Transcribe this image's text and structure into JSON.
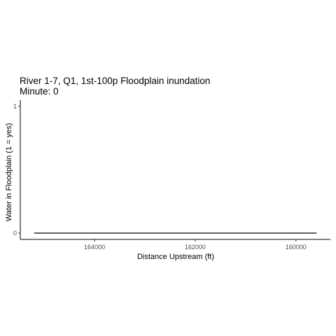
{
  "chart_data": {
    "type": "line",
    "title": "River 1-7, Q1, 1st-100p Floodplain inundation",
    "subtitle": "Minute: 0",
    "xlabel": "Distance Upstream (ft)",
    "ylabel": "Water in Floodplain (1 = yes)",
    "x_reversed": true,
    "xlim": [
      165475,
      159315
    ],
    "ylim": [
      -0.05,
      1.05
    ],
    "x_ticks": [
      {
        "value": 164000,
        "label": "164000"
      },
      {
        "value": 162000,
        "label": "162000"
      },
      {
        "value": 160000,
        "label": "160000"
      }
    ],
    "y_ticks": [
      {
        "value": 0,
        "label": "0"
      },
      {
        "value": 1,
        "label": "1"
      }
    ],
    "grid": false,
    "series": [
      {
        "color": "#000000",
        "points": [
          {
            "x": 165200,
            "y": 0
          },
          {
            "x": 159590,
            "y": 0
          }
        ]
      }
    ]
  }
}
